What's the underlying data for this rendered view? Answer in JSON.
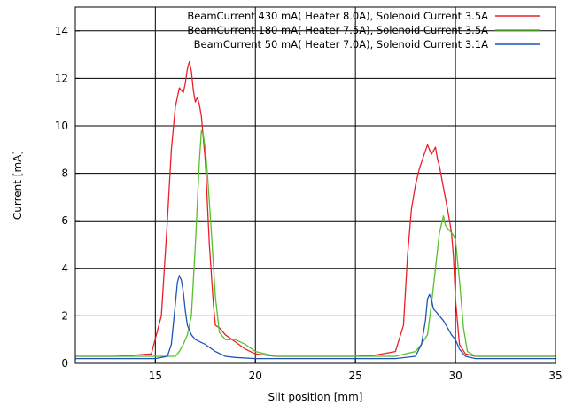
{
  "chart_data": {
    "type": "line",
    "title": "",
    "xlabel": "Slit position [mm]",
    "ylabel": "Current [mA]",
    "xlim": [
      11,
      35
    ],
    "ylim": [
      0,
      15
    ],
    "xticks": [
      15,
      20,
      25,
      30,
      35
    ],
    "xtick_labels": [
      "15",
      "20",
      "25",
      "30",
      "35"
    ],
    "yticks": [
      0,
      2,
      4,
      6,
      8,
      10,
      12,
      14
    ],
    "ytick_labels": [
      "0",
      "2",
      "4",
      "6",
      "8",
      "10",
      "12",
      "14"
    ],
    "grid": true,
    "legend_position": "top-right",
    "series": [
      {
        "name": "BeamCurrent 430 mA( Heater 8.0A), Solenoid Current 3.5A",
        "color": "#e8202a",
        "x": [
          11,
          12,
          13,
          14,
          14.8,
          15.3,
          15.6,
          15.8,
          16.0,
          16.2,
          16.4,
          16.5,
          16.6,
          16.7,
          16.8,
          16.9,
          17.0,
          17.1,
          17.2,
          17.3,
          17.5,
          17.7,
          17.9,
          18.0,
          18.2,
          18.5,
          19.0,
          19.5,
          20.0,
          20.5,
          21,
          22,
          23,
          24,
          25,
          26,
          27,
          27.4,
          27.6,
          27.8,
          28.0,
          28.2,
          28.4,
          28.6,
          28.8,
          29.0,
          29.1,
          29.2,
          29.4,
          29.6,
          29.8,
          29.9,
          30.0,
          30.2,
          30.5,
          31,
          32,
          33,
          34,
          35
        ],
        "y": [
          0.3,
          0.3,
          0.3,
          0.35,
          0.4,
          2.0,
          6.0,
          9.0,
          10.8,
          11.6,
          11.4,
          11.8,
          12.4,
          12.7,
          12.3,
          11.5,
          11.0,
          11.2,
          10.9,
          10.4,
          8.5,
          5.0,
          2.5,
          1.6,
          1.5,
          1.2,
          0.9,
          0.6,
          0.4,
          0.35,
          0.3,
          0.3,
          0.3,
          0.3,
          0.3,
          0.35,
          0.5,
          1.6,
          4.5,
          6.5,
          7.5,
          8.2,
          8.7,
          9.2,
          8.8,
          9.1,
          8.6,
          8.3,
          7.4,
          6.5,
          5.5,
          4.5,
          2.7,
          0.8,
          0.4,
          0.3,
          0.3,
          0.3,
          0.3,
          0.3
        ]
      },
      {
        "name": "BeamCurrent 180 mA( Heater 7.5A), Solenoid Current 3.5A",
        "color": "#56c02b",
        "x": [
          11,
          12,
          13,
          14,
          15,
          15.5,
          16.0,
          16.2,
          16.4,
          16.6,
          16.8,
          17.0,
          17.2,
          17.3,
          17.4,
          17.5,
          17.6,
          17.8,
          18.0,
          18.2,
          18.5,
          19.0,
          19.5,
          20.0,
          20.5,
          21,
          22,
          23,
          24,
          25,
          26,
          27,
          27.5,
          28,
          28.3,
          28.6,
          28.8,
          29.0,
          29.2,
          29.4,
          29.5,
          29.7,
          29.9,
          30.0,
          30.2,
          30.4,
          30.6,
          31,
          32,
          33,
          34,
          35
        ],
        "y": [
          0.3,
          0.3,
          0.3,
          0.3,
          0.3,
          0.3,
          0.3,
          0.5,
          0.8,
          1.2,
          2.0,
          5.0,
          8.5,
          9.8,
          9.6,
          9.0,
          8.0,
          5.5,
          2.8,
          1.3,
          1.0,
          1.0,
          0.8,
          0.5,
          0.4,
          0.3,
          0.3,
          0.3,
          0.3,
          0.3,
          0.3,
          0.3,
          0.4,
          0.5,
          0.8,
          1.2,
          2.5,
          4.0,
          5.5,
          6.2,
          5.8,
          5.6,
          5.4,
          5.2,
          3.5,
          1.5,
          0.5,
          0.3,
          0.3,
          0.3,
          0.3,
          0.3
        ]
      },
      {
        "name": "BeamCurrent 50 mA( Heater 7.0A), Solenoid Current 3.1A",
        "color": "#1f55b8",
        "x": [
          11,
          12,
          13,
          14,
          15,
          15.6,
          15.8,
          16.0,
          16.1,
          16.2,
          16.3,
          16.4,
          16.5,
          16.6,
          16.8,
          17.0,
          17.5,
          18.0,
          18.5,
          19.0,
          20,
          21,
          22,
          23,
          24,
          25,
          26,
          27,
          28,
          28.3,
          28.5,
          28.6,
          28.7,
          28.8,
          28.9,
          29.0,
          29.2,
          29.4,
          29.6,
          29.8,
          30.0,
          30.2,
          30.5,
          31,
          32,
          33,
          34,
          35
        ],
        "y": [
          0.2,
          0.2,
          0.2,
          0.2,
          0.2,
          0.3,
          0.8,
          2.5,
          3.4,
          3.7,
          3.5,
          3.0,
          2.2,
          1.6,
          1.2,
          1.0,
          0.8,
          0.5,
          0.3,
          0.25,
          0.2,
          0.2,
          0.2,
          0.2,
          0.2,
          0.2,
          0.2,
          0.2,
          0.3,
          0.8,
          1.8,
          2.7,
          2.9,
          2.7,
          2.3,
          2.2,
          2.0,
          1.8,
          1.5,
          1.2,
          1.0,
          0.6,
          0.3,
          0.2,
          0.2,
          0.2,
          0.2,
          0.2
        ]
      }
    ]
  }
}
